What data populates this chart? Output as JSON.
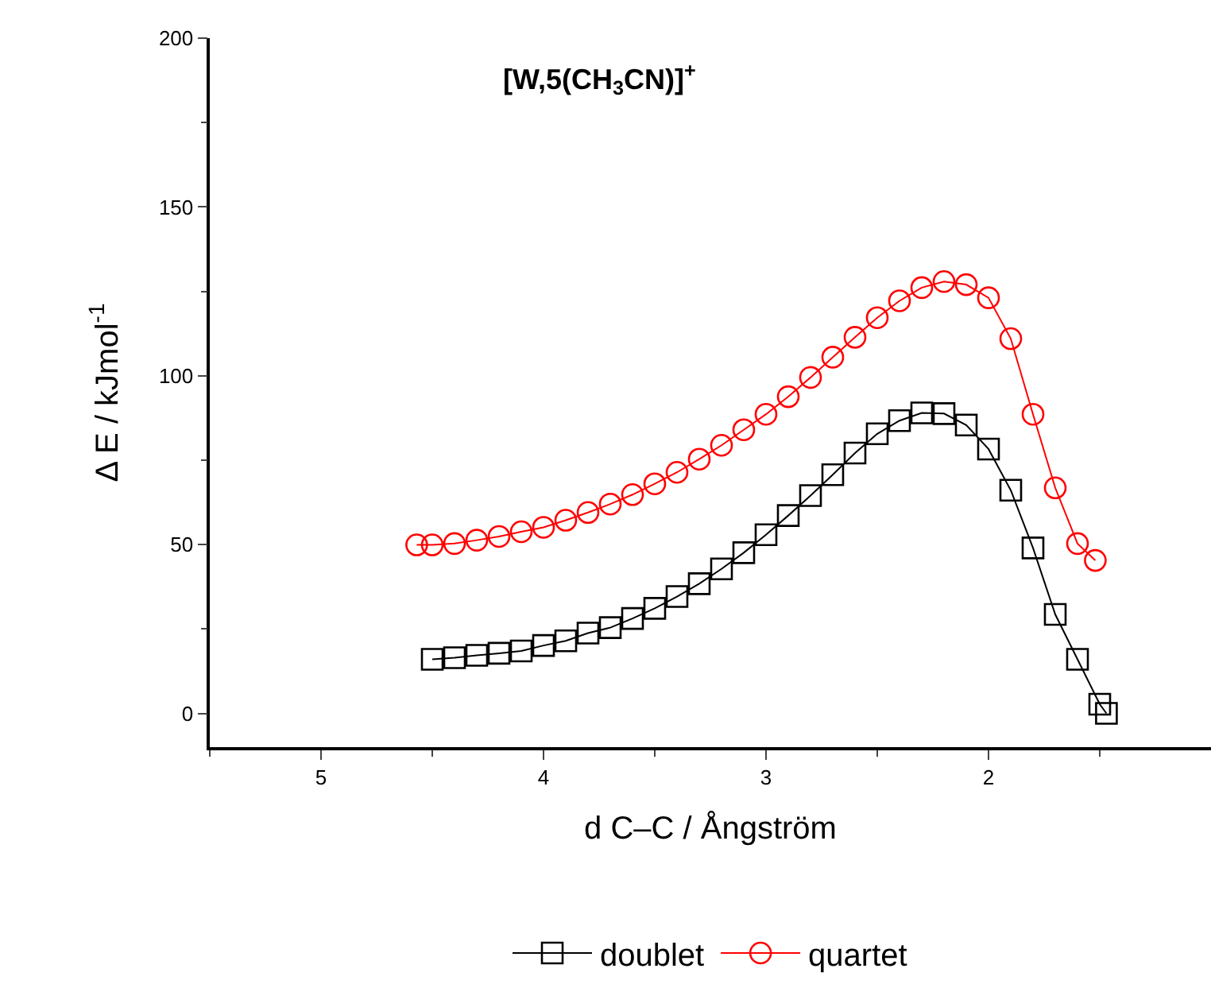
{
  "chart_data": {
    "type": "line",
    "title": "[W,5(CH$_{3}$CN)]$^{+}$",
    "xlabel": "d C–C / Ångström",
    "ylabel": "Δ E / kJmol$^{-1}$",
    "xlim": [
      5.5,
      1.0
    ],
    "xticks": [
      {
        "value": 5.5,
        "label": null
      },
      5,
      {
        "value": 4.5,
        "label": null
      },
      4,
      {
        "value": 3.5,
        "label": null
      },
      3,
      {
        "value": 2.5,
        "label": null
      },
      2,
      {
        "value": 1.5,
        "label": null
      }
    ],
    "ylim": [
      -10,
      200
    ],
    "yticks": [
      0,
      {
        "value": 25,
        "label": null
      },
      50,
      {
        "value": 75,
        "label": null
      },
      100,
      {
        "value": 125,
        "label": null
      },
      150,
      {
        "value": 175,
        "label": null
      },
      200
    ],
    "legend": "bottom",
    "series": [
      {
        "name": "doublet",
        "color": "#000000",
        "marker": "square",
        "x": [
          4.5,
          4.4,
          4.3,
          4.2,
          4.1,
          4.0,
          3.9,
          3.8,
          3.7,
          3.6,
          3.5,
          3.4,
          3.3,
          3.2,
          3.1,
          3.0,
          2.9,
          2.8,
          2.7,
          2.6,
          2.5,
          2.4,
          2.3,
          2.2,
          2.1,
          2.0,
          1.9,
          1.8,
          1.7,
          1.6,
          1.5,
          1.47
        ],
        "values": [
          16.0,
          16.5,
          17.2,
          17.8,
          18.5,
          20.1,
          21.5,
          23.8,
          25.4,
          28.1,
          31.1,
          34.6,
          38.4,
          42.8,
          47.6,
          52.9,
          58.6,
          64.5,
          70.7,
          77.1,
          82.8,
          86.7,
          89.0,
          88.8,
          85.4,
          78.3,
          66.1,
          49.0,
          29.3,
          16.0,
          2.7,
          0
        ]
      },
      {
        "name": "quartet",
        "color": "#ff0000",
        "marker": "circle",
        "x": [
          4.57,
          4.5,
          4.4,
          4.3,
          4.2,
          4.1,
          4.0,
          3.9,
          3.8,
          3.7,
          3.6,
          3.5,
          3.4,
          3.3,
          3.2,
          3.1,
          3.0,
          2.9,
          2.8,
          2.7,
          2.6,
          2.5,
          2.4,
          2.3,
          2.2,
          2.1,
          2.0,
          1.9,
          1.8,
          1.7,
          1.6,
          1.52
        ],
        "values": [
          49.9,
          49.9,
          50.3,
          51.3,
          52.4,
          53.8,
          55.1,
          57.2,
          59.5,
          62.0,
          64.8,
          68.0,
          71.4,
          75.3,
          79.4,
          84.0,
          88.6,
          93.8,
          99.5,
          105.5,
          111.4,
          117.2,
          122.2,
          126.1,
          127.9,
          127.0,
          123.1,
          111.0,
          88.6,
          66.8,
          50.3,
          45.3
        ]
      }
    ]
  }
}
